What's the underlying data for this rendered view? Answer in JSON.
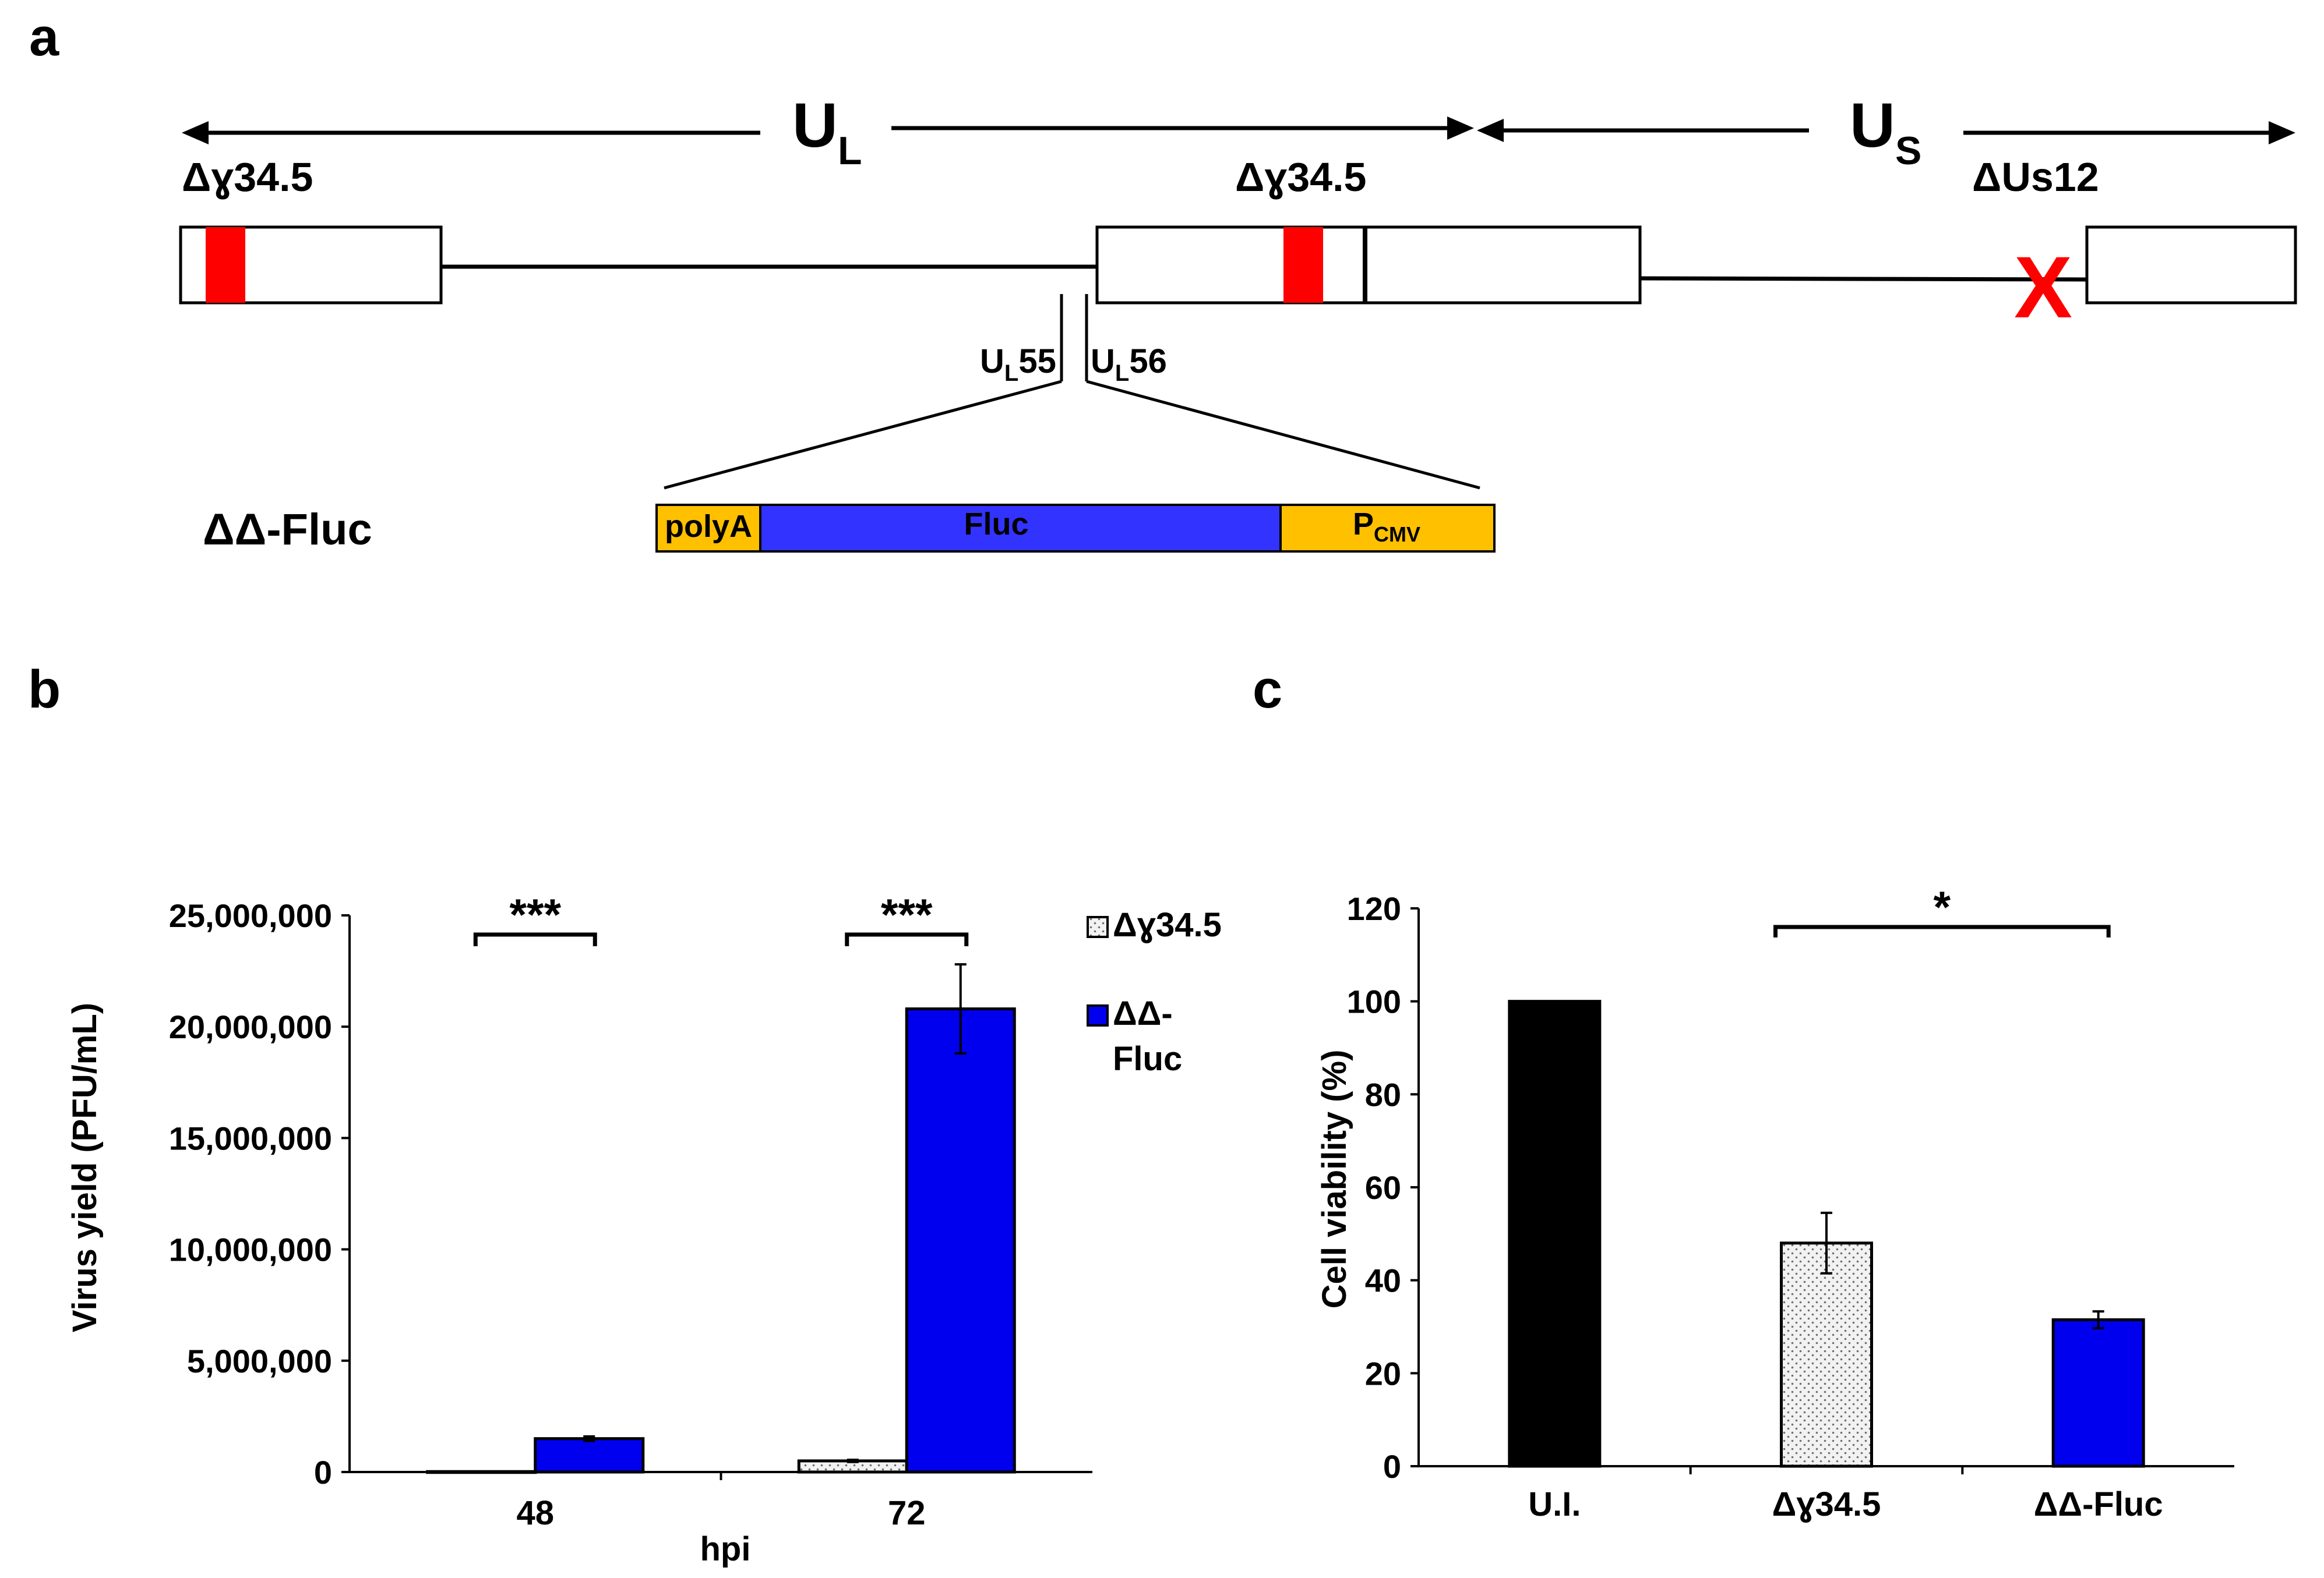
{
  "colors": {
    "deletion_red": "#ff0000",
    "fluc_blue": "#3333ff",
    "cassette_gold": "#ffc000",
    "series_blue": "#0000ee",
    "series_black": "#000000",
    "dotted_fill": "#f2f2f2"
  },
  "panel_a": {
    "label": "a",
    "ul_main": "U",
    "ul_sub": "L",
    "us_main": "U",
    "us_sub": "S",
    "gamma_left": "Δɣ34.5",
    "gamma_right": "Δɣ34.5",
    "us12": "ΔUs12",
    "deletion_mark": "X",
    "ul55_main": "U",
    "ul55_sub": "L",
    "ul55_num": "55",
    "ul56_main": "U",
    "ul56_sub": "L",
    "ul56_num": "56",
    "construct_name": "ΔΔ-Fluc",
    "cassette": {
      "polya": "polyA",
      "fluc": "Fluc",
      "pcmv_main": "P",
      "pcmv_sub": "CMV"
    }
  },
  "chart_data": [
    {
      "panel_label": "b",
      "type": "bar",
      "categories": [
        "48",
        "72"
      ],
      "series": [
        {
          "name": "Δɣ34.5",
          "values": [
            20000,
            500000
          ],
          "errors": [
            5000,
            50000
          ],
          "pattern": "dotted"
        },
        {
          "name": "ΔΔ-Fluc",
          "values": [
            1500000,
            20800000
          ],
          "errors": [
            100000,
            2000000
          ],
          "pattern": "solid-blue"
        }
      ],
      "xlabel": "hpi",
      "ylabel": "Virus yield (PFU/mL)",
      "ylim": [
        0,
        25000000
      ],
      "yticks": [
        "0",
        "5,000,000",
        "10,000,000",
        "15,000,000",
        "20,000,000",
        "25,000,000"
      ],
      "legend_lines": [
        [
          "Δɣ34.5"
        ],
        [
          "ΔΔ-",
          "Fluc"
        ]
      ],
      "legend_position": "right",
      "significance": [
        "***",
        "***"
      ],
      "grid": false
    },
    {
      "panel_label": "c",
      "type": "bar",
      "categories": [
        "U.I.",
        "Δɣ34.5",
        "ΔΔ-Fluc"
      ],
      "values": [
        100,
        48,
        31.5
      ],
      "errors": [
        0,
        6.5,
        1.8
      ],
      "bar_styles": [
        "solid-black",
        "dotted",
        "solid-blue"
      ],
      "xlabel": "",
      "ylabel": "Cell viability (%)",
      "ylim": [
        0,
        120
      ],
      "yticks": [
        "0",
        "20",
        "40",
        "60",
        "80",
        "100",
        "120"
      ],
      "significance": [
        "*"
      ],
      "grid": false
    }
  ]
}
